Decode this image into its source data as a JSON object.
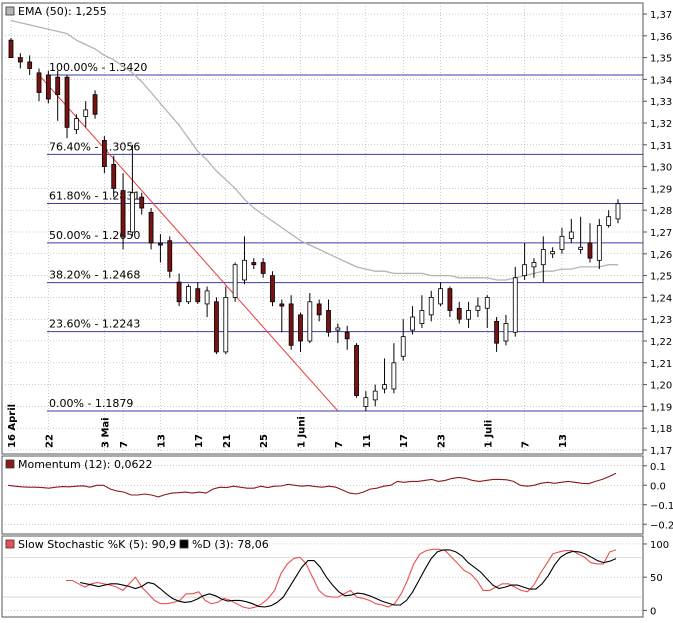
{
  "colors": {
    "up": "#ffffff",
    "down": "#7a1212",
    "ema": "#b4b4b4",
    "fib": "#3c3ca8",
    "trend": "#e83a3a",
    "momentum": "#8b1a1a",
    "stoch_k": "#e85050",
    "stoch_d": "#000000",
    "grid": "#9a9a9a"
  },
  "chart_data": [
    {
      "type": "candlestick",
      "legend": "EMA (50): 1,255",
      "ylim": [
        1.17,
        1.37
      ],
      "y_ticks": [
        "1,37",
        "1,36",
        "1,35",
        "1,34",
        "1,33",
        "1,32",
        "1,31",
        "1,30",
        "1,29",
        "1,28",
        "1,27",
        "1,26",
        "1,25",
        "1,24",
        "1,23",
        "1,22",
        "1,21",
        "1,20",
        "1,19",
        "1,18",
        "1,17"
      ],
      "x_ticks": [
        {
          "label": "16 April",
          "i": 0
        },
        {
          "label": "22",
          "i": 4
        },
        {
          "label": "3 Mai",
          "i": 10
        },
        {
          "label": "7",
          "i": 12
        },
        {
          "label": "13",
          "i": 16
        },
        {
          "label": "17",
          "i": 20
        },
        {
          "label": "21",
          "i": 23
        },
        {
          "label": "25",
          "i": 27
        },
        {
          "label": "1 Juni",
          "i": 31
        },
        {
          "label": "7",
          "i": 35
        },
        {
          "label": "11",
          "i": 38
        },
        {
          "label": "17",
          "i": 42
        },
        {
          "label": "23",
          "i": 46
        },
        {
          "label": "1 Juli",
          "i": 51
        },
        {
          "label": "7",
          "i": 55
        },
        {
          "label": "13",
          "i": 59
        }
      ],
      "fib_levels": [
        {
          "label": "100.00% - 1.3420",
          "value": 1.342
        },
        {
          "label": "76.40% - 1.3056",
          "value": 1.3056
        },
        {
          "label": "61.80% - 1.2831",
          "value": 1.2831
        },
        {
          "label": "50.00% - 1.2650",
          "value": 1.265
        },
        {
          "label": "38.20% - 1.2468",
          "value": 1.2468
        },
        {
          "label": "23.60% - 1.2243",
          "value": 1.2243
        },
        {
          "label": "0.00% - 1.1879",
          "value": 1.1879
        }
      ],
      "trendline": {
        "from": {
          "i": 3,
          "value": 1.342
        },
        "to": {
          "i": 35,
          "value": 1.1879
        }
      },
      "candles": [
        {
          "open": 1.358,
          "high": 1.359,
          "low": 1.35,
          "close": 1.35
        },
        {
          "open": 1.35,
          "high": 1.352,
          "low": 1.345,
          "close": 1.348
        },
        {
          "open": 1.348,
          "high": 1.351,
          "low": 1.342,
          "close": 1.345
        },
        {
          "open": 1.343,
          "high": 1.345,
          "low": 1.33,
          "close": 1.334
        },
        {
          "open": 1.342,
          "high": 1.344,
          "low": 1.329,
          "close": 1.331
        },
        {
          "open": 1.341,
          "high": 1.344,
          "low": 1.321,
          "close": 1.333
        },
        {
          "open": 1.341,
          "high": 1.342,
          "low": 1.313,
          "close": 1.318
        },
        {
          "open": 1.317,
          "high": 1.324,
          "low": 1.315,
          "close": 1.322
        },
        {
          "open": 1.323,
          "high": 1.33,
          "low": 1.318,
          "close": 1.326
        },
        {
          "open": 1.333,
          "high": 1.335,
          "low": 1.322,
          "close": 1.324
        },
        {
          "open": 1.312,
          "high": 1.314,
          "low": 1.297,
          "close": 1.3
        },
        {
          "open": 1.301,
          "high": 1.305,
          "low": 1.286,
          "close": 1.29
        },
        {
          "open": 1.289,
          "high": 1.297,
          "low": 1.262,
          "close": 1.268
        },
        {
          "open": 1.27,
          "high": 1.31,
          "low": 1.268,
          "close": 1.288
        },
        {
          "open": 1.286,
          "high": 1.288,
          "low": 1.278,
          "close": 1.281
        },
        {
          "open": 1.279,
          "high": 1.281,
          "low": 1.262,
          "close": 1.265
        },
        {
          "open": 1.265,
          "high": 1.269,
          "low": 1.256,
          "close": 1.264
        },
        {
          "open": 1.266,
          "high": 1.268,
          "low": 1.249,
          "close": 1.252
        },
        {
          "open": 1.247,
          "high": 1.251,
          "low": 1.236,
          "close": 1.238
        },
        {
          "open": 1.238,
          "high": 1.246,
          "low": 1.237,
          "close": 1.245
        },
        {
          "open": 1.244,
          "high": 1.247,
          "low": 1.237,
          "close": 1.238
        },
        {
          "open": 1.237,
          "high": 1.245,
          "low": 1.231,
          "close": 1.243
        },
        {
          "open": 1.238,
          "high": 1.24,
          "low": 1.214,
          "close": 1.215
        },
        {
          "open": 1.215,
          "high": 1.245,
          "low": 1.214,
          "close": 1.24
        },
        {
          "open": 1.24,
          "high": 1.256,
          "low": 1.238,
          "close": 1.255
        },
        {
          "open": 1.248,
          "high": 1.268,
          "low": 1.246,
          "close": 1.257
        },
        {
          "open": 1.256,
          "high": 1.258,
          "low": 1.253,
          "close": 1.255
        },
        {
          "open": 1.256,
          "high": 1.258,
          "low": 1.249,
          "close": 1.251
        },
        {
          "open": 1.25,
          "high": 1.252,
          "low": 1.236,
          "close": 1.238
        },
        {
          "open": 1.237,
          "high": 1.239,
          "low": 1.224,
          "close": 1.236
        },
        {
          "open": 1.237,
          "high": 1.241,
          "low": 1.216,
          "close": 1.218
        },
        {
          "open": 1.232,
          "high": 1.233,
          "low": 1.215,
          "close": 1.22
        },
        {
          "open": 1.22,
          "high": 1.242,
          "low": 1.219,
          "close": 1.238
        },
        {
          "open": 1.237,
          "high": 1.239,
          "low": 1.229,
          "close": 1.232
        },
        {
          "open": 1.234,
          "high": 1.239,
          "low": 1.222,
          "close": 1.224
        },
        {
          "open": 1.225,
          "high": 1.228,
          "low": 1.219,
          "close": 1.226
        },
        {
          "open": 1.224,
          "high": 1.227,
          "low": 1.216,
          "close": 1.221
        },
        {
          "open": 1.218,
          "high": 1.219,
          "low": 1.194,
          "close": 1.195
        },
        {
          "open": 1.19,
          "high": 1.197,
          "low": 1.188,
          "close": 1.194
        },
        {
          "open": 1.193,
          "high": 1.2,
          "low": 1.19,
          "close": 1.197
        },
        {
          "open": 1.198,
          "high": 1.212,
          "low": 1.196,
          "close": 1.2
        },
        {
          "open": 1.198,
          "high": 1.219,
          "low": 1.196,
          "close": 1.21
        },
        {
          "open": 1.213,
          "high": 1.23,
          "low": 1.211,
          "close": 1.222
        },
        {
          "open": 1.225,
          "high": 1.236,
          "low": 1.223,
          "close": 1.231
        },
        {
          "open": 1.228,
          "high": 1.241,
          "low": 1.226,
          "close": 1.234
        },
        {
          "open": 1.232,
          "high": 1.243,
          "low": 1.229,
          "close": 1.24
        },
        {
          "open": 1.237,
          "high": 1.247,
          "low": 1.236,
          "close": 1.244
        },
        {
          "open": 1.244,
          "high": 1.245,
          "low": 1.231,
          "close": 1.234
        },
        {
          "open": 1.235,
          "high": 1.238,
          "low": 1.228,
          "close": 1.23
        },
        {
          "open": 1.23,
          "high": 1.238,
          "low": 1.226,
          "close": 1.234
        },
        {
          "open": 1.234,
          "high": 1.24,
          "low": 1.231,
          "close": 1.236
        },
        {
          "open": 1.235,
          "high": 1.241,
          "low": 1.226,
          "close": 1.24
        },
        {
          "open": 1.229,
          "high": 1.231,
          "low": 1.215,
          "close": 1.219
        },
        {
          "open": 1.22,
          "high": 1.232,
          "low": 1.218,
          "close": 1.228
        },
        {
          "open": 1.224,
          "high": 1.254,
          "low": 1.222,
          "close": 1.249
        },
        {
          "open": 1.25,
          "high": 1.265,
          "low": 1.248,
          "close": 1.255
        },
        {
          "open": 1.254,
          "high": 1.258,
          "low": 1.249,
          "close": 1.256
        },
        {
          "open": 1.255,
          "high": 1.268,
          "low": 1.247,
          "close": 1.262
        },
        {
          "open": 1.26,
          "high": 1.263,
          "low": 1.258,
          "close": 1.261
        },
        {
          "open": 1.262,
          "high": 1.272,
          "low": 1.26,
          "close": 1.268
        },
        {
          "open": 1.267,
          "high": 1.276,
          "low": 1.265,
          "close": 1.27
        },
        {
          "open": 1.262,
          "high": 1.277,
          "low": 1.26,
          "close": 1.263
        },
        {
          "open": 1.265,
          "high": 1.274,
          "low": 1.256,
          "close": 1.258
        },
        {
          "open": 1.257,
          "high": 1.276,
          "low": 1.253,
          "close": 1.273
        },
        {
          "open": 1.273,
          "high": 1.28,
          "low": 1.272,
          "close": 1.277
        },
        {
          "open": 1.276,
          "high": 1.285,
          "low": 1.274,
          "close": 1.283
        }
      ],
      "ema": [
        1.367,
        1.366,
        1.365,
        1.364,
        1.363,
        1.362,
        1.361,
        1.358,
        1.356,
        1.354,
        1.351,
        1.349,
        1.346,
        1.343,
        1.339,
        1.334,
        1.329,
        1.324,
        1.319,
        1.313,
        1.307,
        1.303,
        1.298,
        1.294,
        1.29,
        1.285,
        1.281,
        1.278,
        1.275,
        1.272,
        1.269,
        1.266,
        1.264,
        1.262,
        1.26,
        1.258,
        1.256,
        1.254,
        1.253,
        1.252,
        1.252,
        1.251,
        1.251,
        1.251,
        1.251,
        1.25,
        1.25,
        1.25,
        1.249,
        1.249,
        1.249,
        1.249,
        1.248,
        1.248,
        1.249,
        1.25,
        1.251,
        1.252,
        1.252,
        1.253,
        1.253,
        1.254,
        1.254,
        1.254,
        1.255,
        1.255
      ]
    },
    {
      "type": "line",
      "legend": "Momentum (12): 0,0622",
      "ylim": [
        -0.25,
        0.15
      ],
      "y_ticks": [
        {
          "label": "0.1",
          "value": 0.1
        },
        {
          "label": "0.0",
          "value": 0.0
        },
        {
          "label": "−0.1",
          "value": -0.1
        },
        {
          "label": "−0.2",
          "value": -0.2
        }
      ],
      "values": [
        0.0,
        -0.005,
        -0.008,
        -0.01,
        -0.01,
        -0.012,
        -0.015,
        -0.01,
        -0.007,
        -0.008,
        -0.005,
        -0.003,
        -0.01,
        0.0,
        0.0,
        -0.02,
        -0.03,
        -0.035,
        -0.05,
        -0.05,
        -0.045,
        -0.05,
        -0.06,
        -0.048,
        -0.04,
        -0.038,
        -0.035,
        -0.04,
        -0.035,
        -0.04,
        -0.02,
        -0.01,
        -0.012,
        -0.005,
        -0.01,
        -0.015,
        -0.015,
        -0.005,
        -0.012,
        -0.005,
        -0.004,
        0.005,
        0.0,
        -0.005,
        -0.002,
        -0.007,
        -0.01,
        -0.005,
        -0.01,
        -0.025,
        -0.04,
        -0.045,
        -0.035,
        -0.02,
        -0.015,
        -0.005,
        0.0,
        0.02,
        0.015,
        0.02,
        0.02,
        0.025,
        0.03,
        0.02,
        0.025,
        0.035,
        0.04,
        0.035,
        0.025,
        0.02,
        0.025,
        0.03,
        0.03,
        0.028,
        0.02,
        0.0,
        -0.005,
        0.0,
        0.01,
        0.015,
        0.01,
        0.015,
        0.02,
        0.015,
        0.01,
        0.008,
        0.02,
        0.03,
        0.045,
        0.062
      ]
    },
    {
      "type": "line",
      "legend_k": "Slow Stochastic %K (5): 90,9",
      "legend_d": "%D (3): 78,06",
      "ylim": [
        -10,
        112
      ],
      "y_ticks": [
        {
          "label": "100",
          "value": 100
        },
        {
          "label": "50",
          "value": 50
        },
        {
          "label": "0",
          "value": 0
        }
      ],
      "k": [
        45,
        45,
        40,
        35,
        40,
        42,
        40,
        38,
        35,
        30,
        40,
        50,
        35,
        25,
        15,
        10,
        10,
        12,
        15,
        25,
        25,
        28,
        15,
        10,
        12,
        18,
        15,
        10,
        5,
        3,
        5,
        10,
        18,
        30,
        55,
        70,
        78,
        80,
        70,
        50,
        30,
        22,
        20,
        20,
        25,
        30,
        20,
        18,
        15,
        10,
        8,
        5,
        10,
        25,
        45,
        70,
        85,
        90,
        92,
        92,
        90,
        80,
        70,
        60,
        55,
        45,
        30,
        30,
        35,
        40,
        40,
        35,
        30,
        28,
        38,
        55,
        70,
        85,
        88,
        90,
        90,
        85,
        80,
        72,
        70,
        70,
        88,
        91
      ],
      "d": [
        42,
        40,
        38,
        36,
        38,
        40,
        40,
        38,
        36,
        33,
        36,
        42,
        40,
        33,
        25,
        18,
        14,
        12,
        13,
        17,
        22,
        25,
        22,
        17,
        14,
        15,
        15,
        13,
        10,
        6,
        5,
        7,
        12,
        20,
        35,
        50,
        65,
        75,
        75,
        65,
        50,
        38,
        28,
        22,
        23,
        26,
        25,
        22,
        18,
        14,
        11,
        8,
        8,
        15,
        28,
        45,
        62,
        78,
        88,
        91,
        91,
        88,
        82,
        72,
        65,
        58,
        48,
        38,
        33,
        35,
        38,
        38,
        35,
        32,
        32,
        40,
        52,
        68,
        80,
        86,
        89,
        88,
        85,
        80,
        75,
        72,
        74,
        78
      ]
    }
  ]
}
